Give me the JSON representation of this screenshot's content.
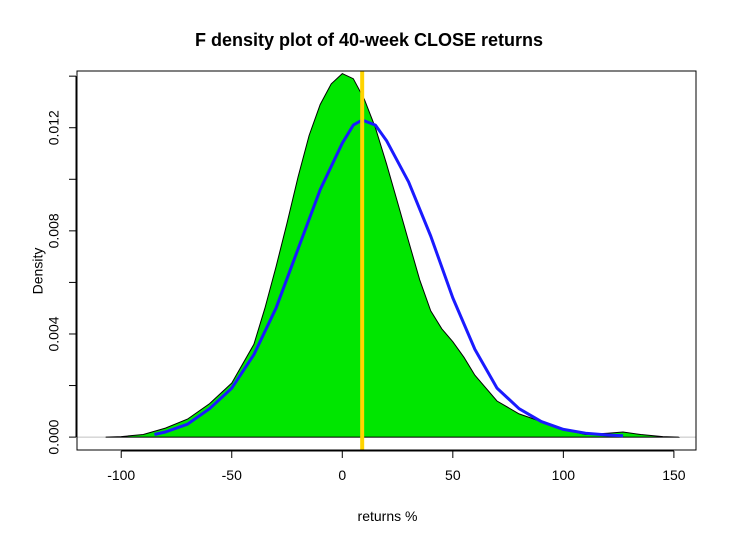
{
  "chart_data": {
    "type": "area",
    "title": "F density plot of 40-week CLOSE returns",
    "xlabel": "returns %",
    "ylabel": "Density",
    "xlim": [
      -120,
      160
    ],
    "ylim": [
      -0.0005,
      0.0142
    ],
    "x_ticks": [
      -100,
      -50,
      0,
      50,
      100,
      150
    ],
    "y_ticks": [
      0.0,
      0.004,
      0.008,
      0.012
    ],
    "x_tick_labels": [
      "-100",
      "-50",
      "0",
      "50",
      "100",
      "150"
    ],
    "y_tick_labels": [
      "0.000",
      "0.004",
      "0.008",
      "0.012"
    ],
    "series": [
      {
        "kind": "density-fill",
        "color": "#00e600",
        "outline": "#000000",
        "x": [
          -107,
          -100,
          -90,
          -80,
          -70,
          -60,
          -50,
          -40,
          -35,
          -30,
          -25,
          -20,
          -15,
          -10,
          -5,
          0,
          5,
          10,
          15,
          20,
          25,
          30,
          35,
          40,
          45,
          50,
          55,
          60,
          70,
          80,
          90,
          100,
          110,
          120,
          127,
          135,
          145,
          152
        ],
        "y": [
          0.0,
          2e-05,
          0.0001,
          0.00035,
          0.0007,
          0.0013,
          0.0021,
          0.0036,
          0.005,
          0.0066,
          0.0083,
          0.0101,
          0.0117,
          0.0129,
          0.0137,
          0.0141,
          0.0139,
          0.0131,
          0.012,
          0.0106,
          0.0091,
          0.0076,
          0.0061,
          0.0049,
          0.0042,
          0.0037,
          0.0031,
          0.0024,
          0.0014,
          0.0009,
          0.0006,
          0.0003,
          0.0001,
          0.00015,
          0.0002,
          0.0001,
          2e-05,
          0.0
        ]
      },
      {
        "kind": "normal-curve",
        "color": "#1a1aff",
        "x": [
          -85,
          -80,
          -70,
          -60,
          -50,
          -40,
          -30,
          -20,
          -10,
          0,
          5,
          9,
          15,
          20,
          30,
          40,
          50,
          60,
          70,
          80,
          90,
          100,
          110,
          120,
          127
        ],
        "y": [
          0.0001,
          0.0002,
          0.0005,
          0.0011,
          0.0019,
          0.0032,
          0.005,
          0.0073,
          0.0096,
          0.0114,
          0.0121,
          0.0123,
          0.0121,
          0.0115,
          0.0099,
          0.0078,
          0.0054,
          0.0034,
          0.0019,
          0.0011,
          0.0006,
          0.0003,
          0.00015,
          8e-05,
          5e-05
        ]
      }
    ],
    "vline": {
      "x": 9,
      "color": "#ffd400"
    },
    "zero_line_color": "#c0c0c0"
  }
}
